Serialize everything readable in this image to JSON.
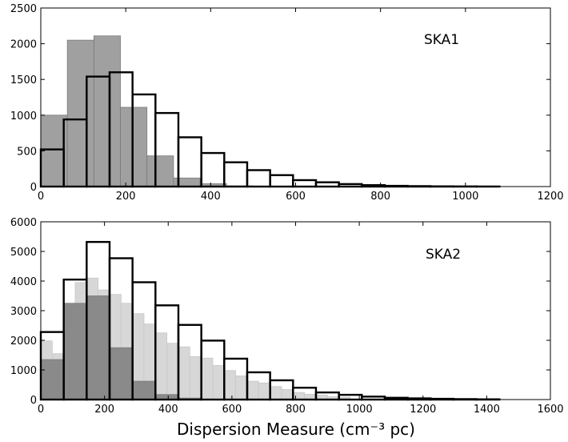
{
  "chart_data": [
    {
      "type": "bar",
      "panel_label": "SKA1",
      "xlim": [
        0,
        1200
      ],
      "ylim": [
        0,
        2500
      ],
      "x_ticks": [
        0,
        200,
        400,
        600,
        800,
        1000,
        1200
      ],
      "y_ticks": [
        0,
        500,
        1000,
        1500,
        2000,
        2500
      ],
      "series": [
        {
          "style": "filled-dark",
          "color": "#a0a0a0",
          "bin_width": 62.5,
          "bin_starts": [
            0,
            62.5,
            125,
            187.5,
            250,
            312.5,
            375,
            437.5
          ],
          "values": [
            1000,
            2050,
            2110,
            1110,
            430,
            120,
            40,
            10
          ]
        },
        {
          "style": "outline",
          "color": "#000000",
          "bin_width": 54,
          "bin_starts": [
            0,
            54,
            108,
            162,
            216,
            270,
            324,
            378,
            432,
            486,
            540,
            594,
            648,
            702,
            756,
            810,
            864,
            918,
            972,
            1026
          ],
          "values": [
            520,
            940,
            1540,
            1600,
            1290,
            1030,
            690,
            470,
            340,
            230,
            160,
            90,
            60,
            35,
            20,
            10,
            6,
            3,
            2,
            1
          ]
        }
      ]
    },
    {
      "type": "bar",
      "panel_label": "SKA2",
      "xlim": [
        0,
        1600
      ],
      "ylim": [
        0,
        6000
      ],
      "x_ticks": [
        0,
        200,
        400,
        600,
        800,
        1000,
        1200,
        1400,
        1600
      ],
      "y_ticks": [
        0,
        1000,
        2000,
        3000,
        4000,
        5000,
        6000
      ],
      "xlabel": "Dispersion Measure (cm⁻³ pc)",
      "series": [
        {
          "style": "filled-light",
          "color": "#d7d7d7",
          "bin_width": 36,
          "bin_starts": [
            0,
            36,
            72,
            108,
            144,
            180,
            216,
            252,
            288,
            324,
            360,
            396,
            432,
            468,
            504,
            540,
            576,
            612,
            648,
            684,
            720,
            756,
            792,
            828,
            864,
            900,
            936
          ],
          "values": [
            1980,
            1550,
            2900,
            3950,
            4100,
            3700,
            3550,
            3250,
            2900,
            2550,
            2250,
            1900,
            1780,
            1450,
            1400,
            1150,
            980,
            800,
            620,
            560,
            440,
            340,
            240,
            180,
            150,
            100,
            80
          ]
        },
        {
          "style": "filled-dark",
          "color": "#8a8a8a",
          "bin_width": 72,
          "bin_starts": [
            0,
            72,
            144,
            216,
            288,
            360,
            432,
            504
          ],
          "values": [
            1350,
            3250,
            3500,
            1750,
            620,
            170,
            50,
            15
          ]
        },
        {
          "style": "outline",
          "color": "#000000",
          "bin_width": 72,
          "bin_starts": [
            0,
            72,
            144,
            216,
            288,
            360,
            432,
            504,
            576,
            648,
            720,
            792,
            864,
            936,
            1008,
            1080,
            1152,
            1224,
            1296,
            1368
          ],
          "values": [
            2280,
            4050,
            5320,
            4770,
            3960,
            3180,
            2520,
            1990,
            1380,
            920,
            650,
            400,
            240,
            160,
            100,
            60,
            40,
            25,
            15,
            8
          ]
        }
      ]
    }
  ]
}
